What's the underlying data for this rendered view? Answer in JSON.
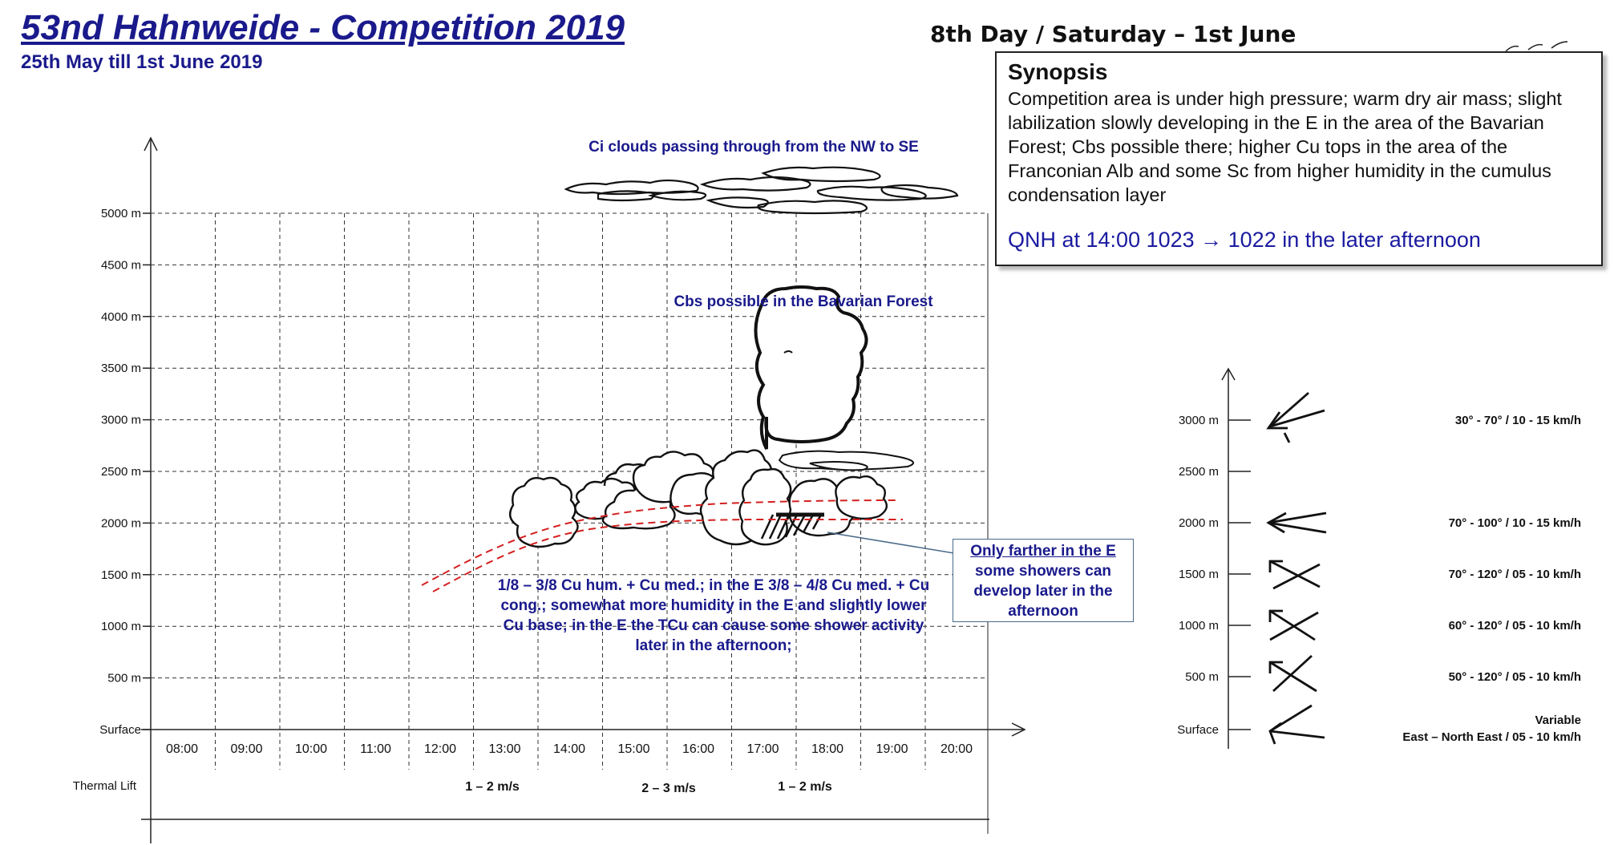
{
  "header": {
    "title": "53nd Hahnweide - Competition 2019",
    "dates": "25th May till 1st June 2019",
    "day": "8th Day / Saturday – 1st June"
  },
  "synopsis": {
    "heading": "Synopsis",
    "text": "Competition area is under high pressure; warm dry air mass; slight labilization slowly developing in the E in the area of the Bavarian Forest; Cbs possible there; higher Cu tops in the area of the Franconian Alb and some Sc from higher humidity in the cumulus condensation layer",
    "qnh": "QNH at 14:00 1023 → 1022 in the later afternoon"
  },
  "diagram": {
    "altitude_labels": [
      "5000 m",
      "4500 m",
      "4000 m",
      "3500 m",
      "3000 m",
      "2500 m",
      "2000 m",
      "1500 m",
      "1000 m",
      "500 m",
      "Surface"
    ],
    "time_labels": [
      "08:00",
      "09:00",
      "10:00",
      "11:00",
      "12:00",
      "13:00",
      "14:00",
      "15:00",
      "16:00",
      "17:00",
      "18:00",
      "19:00",
      "20:00"
    ],
    "thermal_lift_label": "Thermal Lift",
    "thermal_lift_values": [
      {
        "time_span": "12:00–14:00",
        "text": "1 – 2 m/s"
      },
      {
        "time_span": "15:00–16:00",
        "text": "2 – 3 m/s"
      },
      {
        "time_span": "17:00–18:00",
        "text": "1 – 2 m/s"
      }
    ],
    "ci_label": "Ci clouds passing through from the NW to SE",
    "cb_label": "Cbs possible in the Bavarian Forest",
    "cu_text": "1/8 – 3/8 Cu hum. + Cu med.; in the E 3/8 – 4/8 Cu med. + Cu cong.; somewhat more humidity in the E and slightly lower Cu base; in the E the TCu can cause some shower activity later in the afternoon;",
    "note": {
      "underlined": "Only farther in the E",
      "rest": "some showers can develop later in the afternoon"
    }
  },
  "wind": {
    "levels": [
      {
        "altitude": "3000 m",
        "text": "30° - 70° / 10 - 15 km/h"
      },
      {
        "altitude": "2500 m",
        "text": ""
      },
      {
        "altitude": "2000 m",
        "text": "70° - 100° / 10 - 15 km/h"
      },
      {
        "altitude": "1500 m",
        "text": "70° - 120° / 05 - 10 km/h"
      },
      {
        "altitude": "1000 m",
        "text": "60° - 120° / 05 - 10 km/h"
      },
      {
        "altitude": "500 m",
        "text": "50° - 120° / 05 - 10 km/h"
      },
      {
        "altitude": "Surface",
        "text_line1": "Variable",
        "text_line2": "East – North East / 05 - 10 km/h"
      }
    ]
  },
  "colors": {
    "title_blue": "#1a1a8c",
    "qnh_blue": "#1a1aa0",
    "base_line_red": "#d42020",
    "grid": "#333333"
  }
}
